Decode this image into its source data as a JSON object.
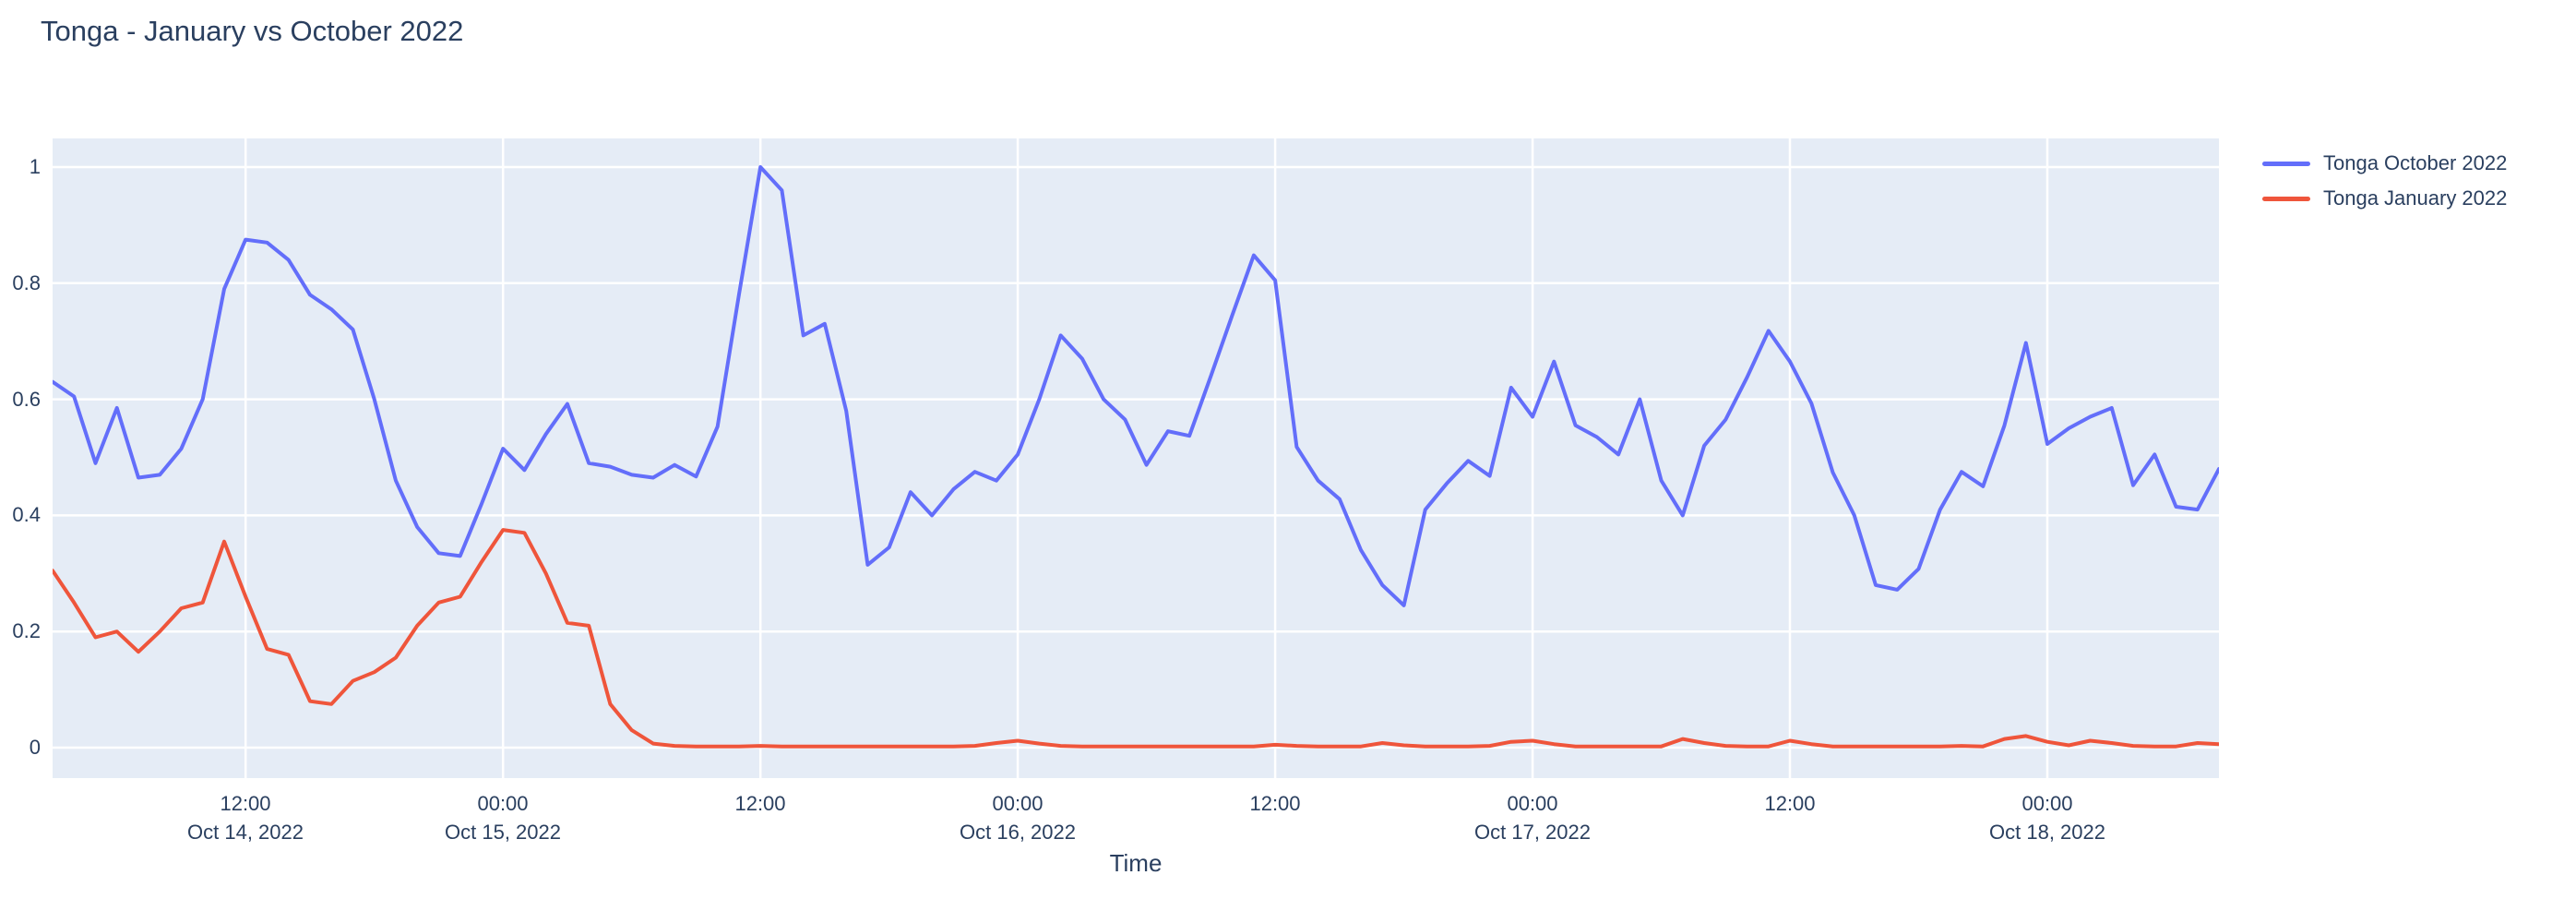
{
  "chart_data": {
    "type": "line",
    "title": "Tonga - January vs October 2022",
    "xlabel": "Time",
    "ylabel": "",
    "ylim": [
      -0.053,
      1.053
    ],
    "grid": true,
    "legend_position": "right-top-outside",
    "plot_bg_color": "#e5ecf6",
    "grid_color": "#ffffff",
    "text_color": "#2a3f5f",
    "x_start": "2022-10-14 03:00",
    "x_step_hours": 1,
    "y_ticks": [
      {
        "v": 0,
        "label": "0"
      },
      {
        "v": 0.2,
        "label": "0.2"
      },
      {
        "v": 0.4,
        "label": "0.4"
      },
      {
        "v": 0.6,
        "label": "0.6"
      },
      {
        "v": 0.8,
        "label": "0.8"
      },
      {
        "v": 1,
        "label": "1"
      }
    ],
    "x_ticks": [
      {
        "index": 9,
        "time": "12:00",
        "date": "Oct 14, 2022"
      },
      {
        "index": 21,
        "time": "00:00",
        "date": "Oct 15, 2022"
      },
      {
        "index": 33,
        "time": "12:00",
        "date": ""
      },
      {
        "index": 45,
        "time": "00:00",
        "date": "Oct 16, 2022"
      },
      {
        "index": 57,
        "time": "12:00",
        "date": ""
      },
      {
        "index": 69,
        "time": "00:00",
        "date": "Oct 17, 2022"
      },
      {
        "index": 81,
        "time": "12:00",
        "date": ""
      },
      {
        "index": 93,
        "time": "00:00",
        "date": "Oct 18, 2022"
      }
    ],
    "series": [
      {
        "name": "Tonga October 2022",
        "color": "#636efa",
        "values": [
          0.63,
          0.605,
          0.49,
          0.585,
          0.465,
          0.47,
          0.515,
          0.6,
          0.79,
          0.875,
          0.87,
          0.84,
          0.78,
          0.755,
          0.72,
          0.6,
          0.46,
          0.38,
          0.335,
          0.33,
          0.42,
          0.515,
          0.478,
          0.54,
          0.592,
          0.49,
          0.484,
          0.47,
          0.465,
          0.487,
          0.467,
          0.553,
          0.78,
          1.0,
          0.96,
          0.71,
          0.73,
          0.58,
          0.315,
          0.345,
          0.44,
          0.4,
          0.445,
          0.475,
          0.46,
          0.505,
          0.6,
          0.71,
          0.67,
          0.6,
          0.565,
          0.487,
          0.545,
          0.537,
          0.64,
          0.745,
          0.848,
          0.805,
          0.518,
          0.46,
          0.428,
          0.34,
          0.28,
          0.245,
          0.41,
          0.455,
          0.494,
          0.468,
          0.62,
          0.57,
          0.665,
          0.555,
          0.535,
          0.505,
          0.6,
          0.46,
          0.4,
          0.52,
          0.565,
          0.638,
          0.718,
          0.665,
          0.593,
          0.474,
          0.4,
          0.28,
          0.272,
          0.308,
          0.41,
          0.475,
          0.45,
          0.555,
          0.697,
          0.523,
          0.55,
          0.57,
          0.585,
          0.452,
          0.505,
          0.415,
          0.41,
          0.48
        ]
      },
      {
        "name": "Tonga January 2022",
        "color": "#ef553b",
        "values": [
          0.305,
          0.25,
          0.19,
          0.2,
          0.165,
          0.2,
          0.24,
          0.25,
          0.355,
          0.26,
          0.17,
          0.16,
          0.08,
          0.075,
          0.115,
          0.13,
          0.155,
          0.21,
          0.25,
          0.26,
          0.32,
          0.375,
          0.37,
          0.3,
          0.215,
          0.21,
          0.075,
          0.03,
          0.007,
          0.003,
          0.002,
          0.002,
          0.002,
          0.003,
          0.002,
          0.002,
          0.002,
          0.002,
          0.002,
          0.002,
          0.002,
          0.002,
          0.002,
          0.003,
          0.008,
          0.012,
          0.007,
          0.003,
          0.002,
          0.002,
          0.002,
          0.002,
          0.002,
          0.002,
          0.002,
          0.002,
          0.002,
          0.005,
          0.003,
          0.002,
          0.002,
          0.002,
          0.008,
          0.004,
          0.002,
          0.002,
          0.002,
          0.003,
          0.01,
          0.012,
          0.006,
          0.002,
          0.002,
          0.002,
          0.002,
          0.002,
          0.015,
          0.008,
          0.003,
          0.002,
          0.002,
          0.012,
          0.006,
          0.002,
          0.002,
          0.002,
          0.002,
          0.002,
          0.002,
          0.003,
          0.002,
          0.015,
          0.02,
          0.01,
          0.004,
          0.012,
          0.008,
          0.003,
          0.002,
          0.002,
          0.008,
          0.006
        ]
      }
    ]
  }
}
